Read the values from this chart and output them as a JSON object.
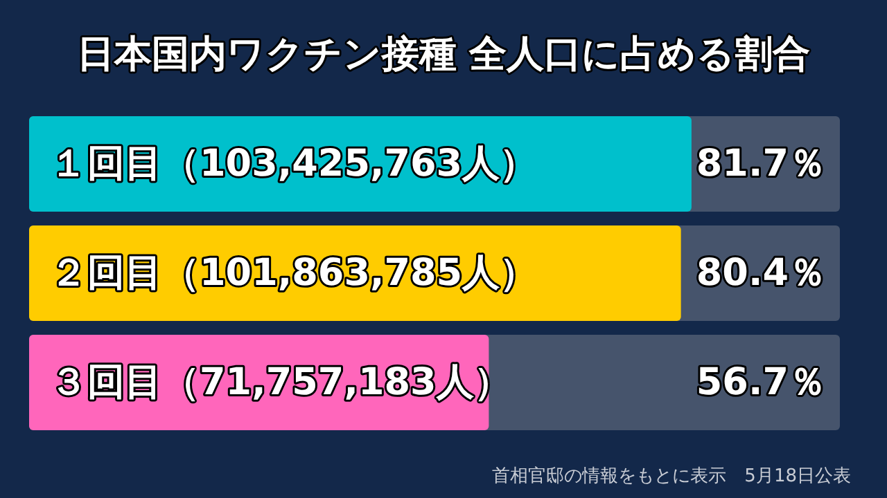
{
  "chart_data": {
    "type": "bar",
    "orientation": "horizontal",
    "title": "日本国内ワクチン接種 全人口に占める割合",
    "categories": [
      "１回目（103,425,763人）",
      "２回目（101,863,785人）",
      "３回目（71,757,183人）"
    ],
    "values": [
      81.7,
      80.4,
      56.7
    ],
    "colors": [
      "#00c0cc",
      "#ffcc00",
      "#ff66bb"
    ],
    "value_labels": [
      "81.7％",
      "80.4％",
      "56.7％"
    ],
    "xlim": [
      0,
      100
    ],
    "annotations": [
      "首相官邸の情報をもとに表示　5月18日公表"
    ]
  }
}
